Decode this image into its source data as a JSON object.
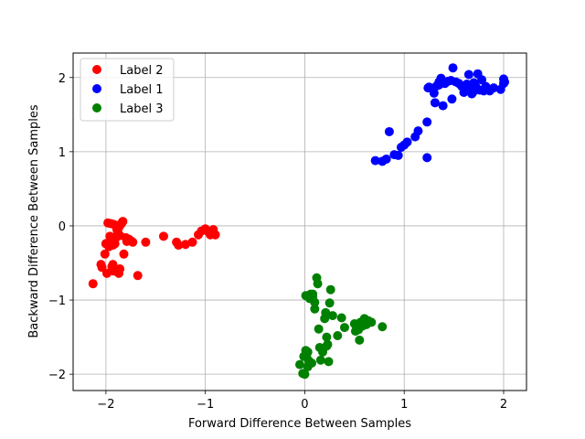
{
  "chart_data": {
    "type": "scatter",
    "title": "",
    "xlabel": "Forward Difference Between Samples",
    "ylabel": "Backward Difference Between Samples",
    "xlim": [
      -2.33,
      2.23
    ],
    "ylim": [
      -2.22,
      2.33
    ],
    "xticks": [
      -2,
      -1,
      0,
      1,
      2
    ],
    "yticks": [
      -2,
      -1,
      0,
      1,
      2
    ],
    "xtick_labels": [
      "−2",
      "−1",
      "0",
      "1",
      "2"
    ],
    "ytick_labels": [
      "−2",
      "−1",
      "0",
      "1",
      "2"
    ],
    "grid": true,
    "legend_position": "upper-left",
    "series": [
      {
        "name": "Label 2",
        "color": "#ff0000",
        "x": [
          -2.13,
          -2.05,
          -2.04,
          -2.01,
          -2.0,
          -1.99,
          -1.98,
          -1.97,
          -1.96,
          -1.95,
          -1.94,
          -1.93,
          -1.93,
          -1.92,
          -1.91,
          -1.9,
          -1.89,
          -1.88,
          -1.87,
          -1.86,
          -1.85,
          -1.84,
          -1.83,
          -1.82,
          -1.8,
          -1.79,
          -1.78,
          -1.77,
          -1.75,
          -1.73,
          -1.68,
          -1.6,
          -1.42,
          -1.29,
          -1.27,
          -1.2,
          -1.13,
          -1.07,
          -1.04,
          -1.0,
          -0.97,
          -0.95,
          -0.92,
          -0.9,
          -1.95,
          -1.9,
          -1.87,
          -1.92,
          -2.0,
          -1.86
        ],
        "y": [
          -0.78,
          -0.52,
          -0.56,
          -0.38,
          -0.24,
          -0.64,
          0.04,
          -0.28,
          -0.14,
          0.03,
          -0.55,
          -0.26,
          -0.52,
          -0.61,
          -0.24,
          -0.6,
          -0.05,
          -0.09,
          -0.64,
          -0.58,
          0.02,
          0.04,
          0.06,
          -0.38,
          -0.16,
          -0.21,
          -0.2,
          -0.18,
          -0.2,
          -0.22,
          -0.67,
          -0.22,
          -0.14,
          -0.22,
          -0.26,
          -0.25,
          -0.22,
          -0.12,
          -0.07,
          -0.04,
          -0.08,
          -0.12,
          -0.05,
          -0.12,
          -0.2,
          -0.16,
          -0.02,
          0.02,
          -0.24,
          -0.13
        ]
      },
      {
        "name": "Label 1",
        "color": "#0000ff",
        "x": [
          0.71,
          0.78,
          0.82,
          0.85,
          0.9,
          0.94,
          0.97,
          1.0,
          1.03,
          1.11,
          1.14,
          1.23,
          1.23,
          1.25,
          1.27,
          1.3,
          1.31,
          1.33,
          1.35,
          1.37,
          1.39,
          1.41,
          1.44,
          1.48,
          1.49,
          1.52,
          1.55,
          1.6,
          1.63,
          1.65,
          1.67,
          1.69,
          1.7,
          1.72,
          1.74,
          1.76,
          1.78,
          1.8,
          1.82,
          1.86,
          1.97,
          2.0,
          2.0,
          2.01,
          1.24,
          1.35,
          1.47,
          1.68,
          1.58,
          1.9
        ],
        "y": [
          0.88,
          0.87,
          0.9,
          1.27,
          0.96,
          0.95,
          1.06,
          1.09,
          1.13,
          1.2,
          1.28,
          0.92,
          1.4,
          1.87,
          1.86,
          1.79,
          1.66,
          1.89,
          1.94,
          1.99,
          1.62,
          1.92,
          1.95,
          1.71,
          2.13,
          1.94,
          1.92,
          1.8,
          1.91,
          2.04,
          1.85,
          1.8,
          1.93,
          1.88,
          2.05,
          1.83,
          1.97,
          1.82,
          1.88,
          1.82,
          1.84,
          1.98,
          1.92,
          1.94,
          1.86,
          1.9,
          1.96,
          1.78,
          1.88,
          1.86
        ]
      },
      {
        "name": "Label 3",
        "color": "#008000",
        "x": [
          -0.05,
          -0.02,
          -0.01,
          0.0,
          0.01,
          0.02,
          0.03,
          0.04,
          0.05,
          0.06,
          0.08,
          0.1,
          0.12,
          0.13,
          0.14,
          0.15,
          0.16,
          0.18,
          0.2,
          0.21,
          0.22,
          0.23,
          0.24,
          0.25,
          0.28,
          0.33,
          0.37,
          0.4,
          0.5,
          0.51,
          0.52,
          0.53,
          0.54,
          0.55,
          0.56,
          0.58,
          0.6,
          0.62,
          0.64,
          0.67,
          0.78,
          0.03,
          0.07,
          0.1,
          0.18,
          0.22,
          0.26,
          0.05,
          0.01,
          0.08
        ],
        "y": [
          -1.87,
          -1.99,
          -1.76,
          -2.0,
          -0.94,
          -1.77,
          -1.7,
          -1.82,
          -0.98,
          -0.92,
          -0.95,
          -1.12,
          -0.7,
          -0.78,
          -1.39,
          -1.64,
          -1.81,
          -1.66,
          -1.25,
          -1.17,
          -1.5,
          -1.6,
          -1.83,
          -1.04,
          -1.21,
          -1.48,
          -1.24,
          -1.37,
          -1.32,
          -1.42,
          -1.36,
          -1.34,
          -1.4,
          -1.54,
          -1.3,
          -1.35,
          -1.25,
          -1.33,
          -1.28,
          -1.3,
          -1.36,
          -1.9,
          -1.85,
          -1.03,
          -1.7,
          -1.62,
          -0.86,
          -0.97,
          -1.68,
          -0.92
        ]
      }
    ]
  }
}
